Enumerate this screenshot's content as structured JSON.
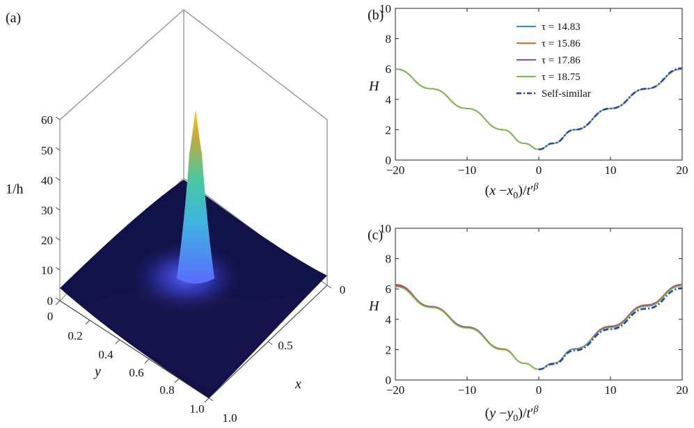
{
  "panel_labels": {
    "a": "(a)",
    "b": "(b)",
    "c": "(c)"
  },
  "colors": {
    "tau1": "#2f8fd6",
    "tau2": "#e8702a",
    "tau3": "#8e4cb0",
    "tau4": "#7ac043",
    "self_similar": "#1f3fd8",
    "surface_base": "#12124a",
    "surface_peak": "#e0c020"
  },
  "chart_data": [
    {
      "id": "a",
      "type": "surface3d",
      "zlabel": "1/h",
      "xlabel": "x",
      "ylabel": "y",
      "zticks": [
        "0",
        "10",
        "20",
        "30",
        "40",
        "50",
        "60"
      ],
      "yticks": [
        "0",
        "0.2",
        "0.4",
        "0.6",
        "0.8",
        "1.0"
      ],
      "xticks": [
        "0",
        "0.5",
        "1.0"
      ],
      "zlim": [
        0,
        60
      ],
      "peak": {
        "x": 0.5,
        "y": 0.5,
        "value": 60
      },
      "base_level": 3
    },
    {
      "id": "b",
      "type": "line",
      "xlabel": "(x−x0)/t′β",
      "ylabel": "H",
      "xlim": [
        -20,
        20
      ],
      "ylim": [
        0,
        10
      ],
      "xticks": [
        "−20",
        "−10",
        "0",
        "10",
        "20"
      ],
      "yticks": [
        "0",
        "2",
        "4",
        "6",
        "8",
        "10"
      ],
      "legend_position": "top-center",
      "series": [
        {
          "name": "τ = 14.83",
          "colorKey": "tau1",
          "style": "solid",
          "x": [
            -20,
            -15,
            -10,
            -5,
            -2,
            0,
            2,
            5,
            10,
            15,
            20
          ],
          "y": [
            6.0,
            4.7,
            3.4,
            2.0,
            1.1,
            0.7,
            1.1,
            2.0,
            3.4,
            4.7,
            6.0
          ]
        },
        {
          "name": "τ = 15.86",
          "colorKey": "tau2",
          "style": "solid",
          "x": [
            -20,
            -15,
            -10,
            -5,
            -2,
            0,
            2,
            5,
            10,
            15,
            20
          ],
          "y": [
            6.0,
            4.7,
            3.4,
            2.0,
            1.1,
            0.7,
            1.1,
            2.0,
            3.4,
            4.7,
            6.0
          ]
        },
        {
          "name": "τ = 17.86",
          "colorKey": "tau3",
          "style": "solid",
          "x": [
            -20,
            -15,
            -10,
            -5,
            -2,
            0,
            2,
            5,
            10,
            15,
            20
          ],
          "y": [
            6.0,
            4.7,
            3.4,
            2.0,
            1.1,
            0.7,
            1.1,
            2.0,
            3.4,
            4.7,
            6.0
          ]
        },
        {
          "name": "τ = 18.75",
          "colorKey": "tau4",
          "style": "solid",
          "x": [
            -20,
            -15,
            -10,
            -5,
            -2,
            0,
            2,
            5,
            10,
            15,
            20
          ],
          "y": [
            6.0,
            4.7,
            3.4,
            2.0,
            1.1,
            0.7,
            1.1,
            2.0,
            3.4,
            4.7,
            6.0
          ]
        },
        {
          "name": "Self-similar",
          "colorKey": "self_similar",
          "style": "dashdot",
          "x": [
            0,
            2,
            5,
            10,
            15,
            20
          ],
          "y": [
            0.7,
            1.1,
            2.0,
            3.4,
            4.7,
            6.05
          ]
        }
      ]
    },
    {
      "id": "c",
      "type": "line",
      "xlabel": "(y−y0)/t′β",
      "ylabel": "H",
      "xlim": [
        -20,
        20
      ],
      "ylim": [
        0,
        10
      ],
      "xticks": [
        "−20",
        "−10",
        "0",
        "10",
        "20"
      ],
      "yticks": [
        "0",
        "2",
        "4",
        "6",
        "8",
        "10"
      ],
      "series": [
        {
          "name": "τ = 14.83",
          "colorKey": "tau1",
          "style": "solid",
          "x": [
            -20,
            -15,
            -10,
            -5,
            -2,
            0,
            2,
            5,
            10,
            15,
            20
          ],
          "y": [
            6.2,
            4.8,
            3.45,
            2.0,
            1.1,
            0.7,
            1.1,
            2.05,
            3.5,
            4.9,
            6.25
          ]
        },
        {
          "name": "τ = 15.86",
          "colorKey": "tau2",
          "style": "solid",
          "x": [
            -20,
            -15,
            -10,
            -5,
            -2,
            0,
            2,
            5,
            10,
            15,
            20
          ],
          "y": [
            6.3,
            4.85,
            3.5,
            2.05,
            1.1,
            0.7,
            1.1,
            2.05,
            3.55,
            4.95,
            6.3
          ]
        },
        {
          "name": "τ = 17.86",
          "colorKey": "tau3",
          "style": "solid",
          "x": [
            -20,
            -15,
            -10,
            -5,
            -2,
            0,
            2,
            5,
            10,
            15,
            20
          ],
          "y": [
            6.25,
            4.82,
            3.48,
            2.02,
            1.1,
            0.7,
            1.1,
            2.05,
            3.52,
            4.92,
            6.28
          ]
        },
        {
          "name": "τ = 18.75",
          "colorKey": "tau4",
          "style": "solid",
          "x": [
            -20,
            -15,
            -10,
            -5,
            -2,
            0,
            2,
            5,
            10,
            15,
            20
          ],
          "y": [
            6.15,
            4.78,
            3.42,
            2.0,
            1.1,
            0.7,
            1.1,
            2.02,
            3.45,
            4.85,
            6.2
          ]
        },
        {
          "name": "Self-similar",
          "colorKey": "self_similar",
          "style": "dashdot",
          "x": [
            0,
            2,
            5,
            10,
            15,
            20
          ],
          "y": [
            0.7,
            1.05,
            1.95,
            3.35,
            4.7,
            6.05
          ]
        }
      ]
    }
  ]
}
